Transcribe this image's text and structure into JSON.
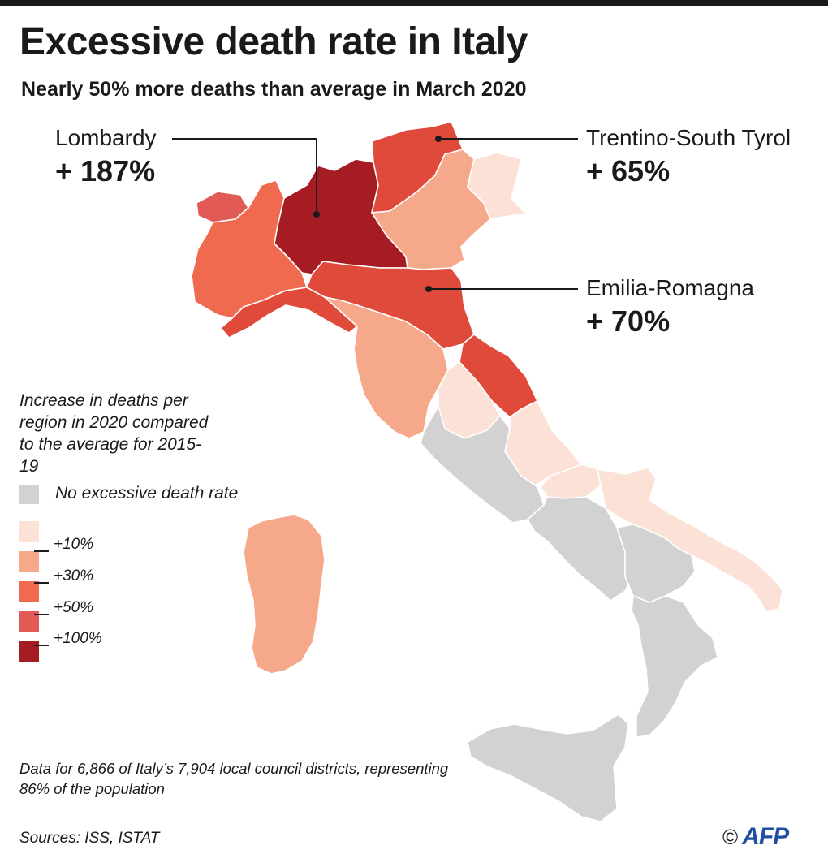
{
  "title": "Excessive death rate in Italy",
  "subtitle": "Nearly 50% more deaths than average in March 2020",
  "callouts": [
    {
      "region": "Lombardy",
      "value": "+ 187%"
    },
    {
      "region": "Trentino-South Tyrol",
      "value": "+ 65%"
    },
    {
      "region": "Emilia-Romagna",
      "value": "+ 70%"
    }
  ],
  "legend": {
    "title": "Increase in deaths per region in 2020 compared to the average for 2015-19",
    "no_data_label": "No excessive death rate",
    "thresholds": [
      "+10%",
      "+30%",
      "+50%",
      "+100%"
    ],
    "colors": [
      "#fbe1d6",
      "#f6a98a",
      "#ef6a4f",
      "#e25a55",
      "#a51d22"
    ],
    "no_data_color": "#d2d2d2"
  },
  "note": "Data for 6,866 of Italy’s 7,904 local council districts, representing 86% of the population",
  "sources": "Sources: ISS, ISTAT",
  "credit": {
    "symbol": "©",
    "agency": "AFP"
  }
}
